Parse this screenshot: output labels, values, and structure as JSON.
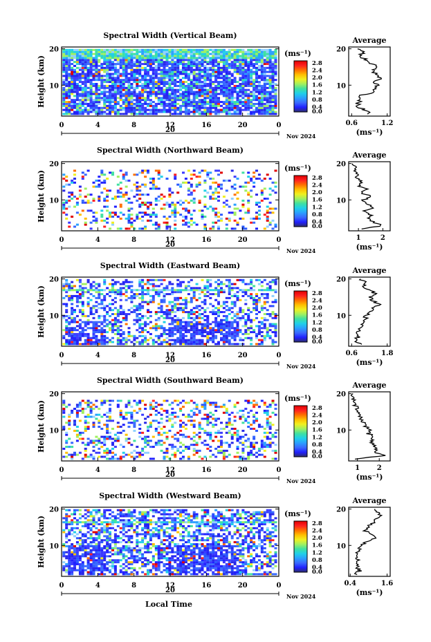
{
  "figure": {
    "xlabel": "Local Time",
    "date_label": "Nov 2024",
    "day_label": "20",
    "colorbar_unit": "(ms⁻¹)",
    "colorbar_ticks": [
      "0.0",
      "0.4",
      "0.8",
      "1.2",
      "1.6",
      "2.0",
      "2.4",
      "2.8"
    ],
    "colorbar_colors": [
      "#2e2e6a",
      "#2020ff",
      "#3a6aff",
      "#2aa0ff",
      "#20d0e8",
      "#40e0a0",
      "#a0f060",
      "#f0f020",
      "#ffc000",
      "#ff7000",
      "#ff2020",
      "#e00000"
    ],
    "avg_title": "Average",
    "avg_xlabel": "(ms⁻¹)",
    "ylabel": "Height (km)"
  },
  "chart_data": [
    {
      "type": "heatmap",
      "title": "Spectral Width (Vertical Beam)",
      "xlabel": "",
      "ylabel": "Height (km)",
      "x_ticks": [
        "0",
        "4",
        "8",
        "12",
        "16",
        "20",
        "0"
      ],
      "y_ticks": [
        "10",
        "20"
      ],
      "xlim": [
        0,
        24
      ],
      "ylim": [
        1.5,
        20.5
      ],
      "colorbar": {
        "label": "(ms⁻¹)",
        "ticks": [
          0.0,
          0.4,
          0.8,
          1.2,
          1.6,
          2.0,
          2.4,
          2.8
        ]
      },
      "average_profile": {
        "title": "Average",
        "xlabel": "(ms⁻¹)",
        "x_ticks": [
          "0.6",
          "1.2"
        ],
        "xlim": [
          0.55,
          1.25
        ],
        "heights": [
          2,
          3,
          4,
          5,
          6,
          7,
          8,
          9,
          10,
          11,
          12,
          13,
          14,
          15,
          16,
          17,
          18,
          19,
          20
        ],
        "values": [
          0.9,
          0.85,
          0.72,
          0.7,
          0.75,
          0.72,
          0.95,
          1.0,
          1.05,
          0.98,
          1.1,
          1.0,
          0.95,
          1.05,
          0.9,
          0.85,
          0.72,
          0.8,
          0.7
        ]
      }
    },
    {
      "type": "heatmap",
      "title": "Spectral Width (Northward Beam)",
      "xlabel": "",
      "ylabel": "Height (km)",
      "x_ticks": [
        "0",
        "4",
        "8",
        "12",
        "16",
        "20",
        "0"
      ],
      "y_ticks": [
        "10",
        "20"
      ],
      "xlim": [
        0,
        24
      ],
      "ylim": [
        1.5,
        20.5
      ],
      "colorbar": {
        "label": "(ms⁻¹)",
        "ticks": [
          0.0,
          0.4,
          0.8,
          1.2,
          1.6,
          2.0,
          2.4,
          2.8
        ]
      },
      "average_profile": {
        "title": "Average",
        "xlabel": "(ms⁻¹)",
        "x_ticks": [
          "1",
          "2"
        ],
        "xlim": [
          0.6,
          2.3
        ],
        "heights": [
          2,
          3,
          4,
          5,
          6,
          7,
          8,
          9,
          10,
          11,
          12,
          13,
          14,
          15,
          16,
          17,
          18,
          19,
          20
        ],
        "values": [
          1.2,
          2.0,
          1.6,
          1.4,
          1.5,
          1.3,
          1.6,
          1.4,
          1.2,
          1.5,
          1.1,
          1.3,
          1.0,
          1.1,
          0.9,
          1.0,
          0.8,
          0.9,
          0.75
        ]
      }
    },
    {
      "type": "heatmap",
      "title": "Spectral Width (Eastward Beam)",
      "xlabel": "",
      "ylabel": "Height (km)",
      "x_ticks": [
        "0",
        "4",
        "8",
        "12",
        "16",
        "20",
        "0"
      ],
      "y_ticks": [
        "10",
        "20"
      ],
      "xlim": [
        0,
        24
      ],
      "ylim": [
        1.5,
        20.5
      ],
      "colorbar": {
        "label": "(ms⁻¹)",
        "ticks": [
          0.0,
          0.4,
          0.8,
          1.2,
          1.6,
          2.0,
          2.4,
          2.8
        ]
      },
      "average_profile": {
        "title": "Average",
        "xlabel": "(ms⁻¹)",
        "x_ticks": [
          "0.6",
          "1.8"
        ],
        "xlim": [
          0.5,
          1.9
        ],
        "heights": [
          2,
          3,
          4,
          5,
          6,
          7,
          8,
          9,
          10,
          11,
          12,
          13,
          14,
          15,
          16,
          17,
          18,
          19,
          20
        ],
        "values": [
          0.9,
          0.7,
          0.8,
          0.75,
          0.85,
          0.9,
          1.0,
          1.05,
          1.1,
          1.2,
          1.3,
          1.5,
          1.3,
          1.2,
          1.4,
          1.2,
          1.0,
          1.1,
          0.9
        ]
      }
    },
    {
      "type": "heatmap",
      "title": "Spectral Width (Southward Beam)",
      "xlabel": "",
      "ylabel": "Height (km)",
      "x_ticks": [
        "0",
        "4",
        "8",
        "12",
        "16",
        "20",
        "0"
      ],
      "y_ticks": [
        "10",
        "20"
      ],
      "xlim": [
        0,
        24
      ],
      "ylim": [
        1.5,
        20.5
      ],
      "colorbar": {
        "label": "(ms⁻¹)",
        "ticks": [
          0.0,
          0.4,
          0.8,
          1.2,
          1.6,
          2.0,
          2.4,
          2.8
        ]
      },
      "average_profile": {
        "title": "Average",
        "xlabel": "(ms⁻¹)",
        "x_ticks": [
          "1",
          "2"
        ],
        "xlim": [
          0.6,
          2.5
        ],
        "heights": [
          2,
          3,
          4,
          5,
          6,
          7,
          8,
          9,
          10,
          11,
          12,
          13,
          14,
          15,
          16,
          17,
          18,
          19,
          20
        ],
        "values": [
          1.0,
          2.2,
          1.8,
          1.9,
          1.7,
          1.6,
          1.8,
          1.5,
          1.6,
          1.4,
          1.3,
          1.2,
          1.1,
          1.0,
          0.95,
          0.9,
          0.85,
          0.8,
          0.8
        ]
      }
    },
    {
      "type": "heatmap",
      "title": "Spectral Width (Westward Beam)",
      "xlabel": "Local Time",
      "ylabel": "Height (km)",
      "x_ticks": [
        "0",
        "4",
        "8",
        "12",
        "16",
        "20",
        "0"
      ],
      "y_ticks": [
        "10",
        "20"
      ],
      "xlim": [
        0,
        24
      ],
      "ylim": [
        1.5,
        20.5
      ],
      "colorbar": {
        "label": "(ms⁻¹)",
        "ticks": [
          0.0,
          0.4,
          0.8,
          1.2,
          1.6,
          2.0,
          2.4,
          2.8
        ]
      },
      "average_profile": {
        "title": "Average",
        "xlabel": "(ms⁻¹)",
        "x_ticks": [
          "0.4",
          "1.6"
        ],
        "xlim": [
          0.35,
          1.7
        ],
        "heights": [
          2,
          3,
          4,
          5,
          6,
          7,
          8,
          9,
          10,
          11,
          12,
          13,
          14,
          15,
          16,
          17,
          18,
          19,
          20
        ],
        "values": [
          0.6,
          0.7,
          0.65,
          0.6,
          0.65,
          0.6,
          0.65,
          0.7,
          0.8,
          0.9,
          1.2,
          1.1,
          0.9,
          1.0,
          1.1,
          1.2,
          1.4,
          1.3,
          1.2
        ]
      }
    }
  ]
}
